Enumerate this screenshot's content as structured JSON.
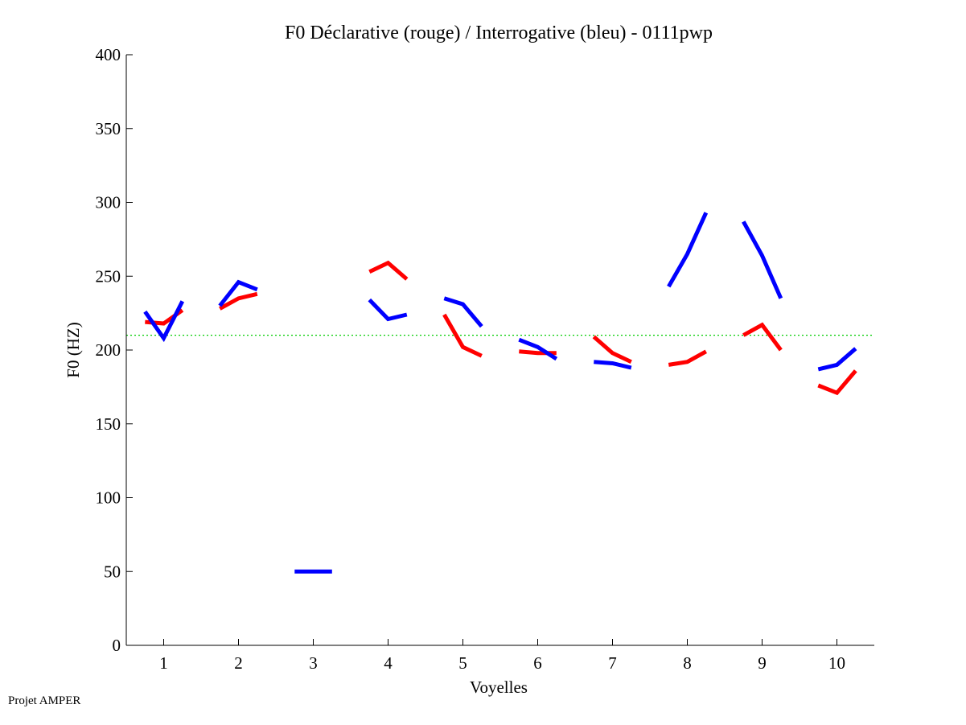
{
  "footer": "Projet AMPER",
  "chart_data": {
    "type": "line",
    "title": "F0 Déclarative (rouge) / Interrogative (bleu) - 0111pwp",
    "xlabel": "Voyelles",
    "ylabel": "F0 (HZ)",
    "xlim": [
      0.5,
      10.5
    ],
    "ylim": [
      0,
      400
    ],
    "xticks": [
      1,
      2,
      3,
      4,
      5,
      6,
      7,
      8,
      9,
      10
    ],
    "yticks": [
      0,
      50,
      100,
      150,
      200,
      250,
      300,
      350,
      400
    ],
    "grid": false,
    "reference_line": {
      "y": 210,
      "color": "#00cc00",
      "style": "dotted"
    },
    "series": [
      {
        "color": "#ff0000",
        "segments": [
          {
            "x": [
              0.75,
              1.0,
              1.25
            ],
            "y": [
              219,
              218,
              227
            ]
          },
          {
            "x": [
              1.75,
              2.0,
              2.25
            ],
            "y": [
              228,
              235,
              238
            ]
          },
          {
            "x": [
              3.75,
              4.0,
              4.25
            ],
            "y": [
              253,
              259,
              248
            ]
          },
          {
            "x": [
              4.75,
              5.0,
              5.25
            ],
            "y": [
              224,
              202,
              196
            ]
          },
          {
            "x": [
              5.75,
              6.0,
              6.25
            ],
            "y": [
              199,
              198,
              198
            ]
          },
          {
            "x": [
              6.75,
              7.0,
              7.25
            ],
            "y": [
              209,
              198,
              192
            ]
          },
          {
            "x": [
              7.75,
              8.0,
              8.25
            ],
            "y": [
              190,
              192,
              199
            ]
          },
          {
            "x": [
              8.75,
              9.0,
              9.25
            ],
            "y": [
              210,
              217,
              200
            ]
          },
          {
            "x": [
              9.75,
              10.0,
              10.25
            ],
            "y": [
              176,
              171,
              186
            ]
          }
        ]
      },
      {
        "color": "#0000ff",
        "segments": [
          {
            "x": [
              0.75,
              1.0,
              1.25
            ],
            "y": [
              226,
              208,
              233
            ]
          },
          {
            "x": [
              1.75,
              2.0,
              2.25
            ],
            "y": [
              230,
              246,
              241
            ]
          },
          {
            "x": [
              2.75,
              3.0,
              3.25
            ],
            "y": [
              50,
              50,
              50
            ]
          },
          {
            "x": [
              3.75,
              4.0,
              4.25
            ],
            "y": [
              234,
              221,
              224
            ]
          },
          {
            "x": [
              4.75,
              5.0,
              5.25
            ],
            "y": [
              235,
              231,
              216
            ]
          },
          {
            "x": [
              5.75,
              6.0,
              6.25
            ],
            "y": [
              207,
              202,
              194
            ]
          },
          {
            "x": [
              6.75,
              7.0,
              7.25
            ],
            "y": [
              192,
              191,
              188
            ]
          },
          {
            "x": [
              7.75,
              8.0,
              8.25
            ],
            "y": [
              243,
              265,
              293
            ]
          },
          {
            "x": [
              8.75,
              9.0,
              9.25
            ],
            "y": [
              287,
              264,
              235
            ]
          },
          {
            "x": [
              9.75,
              10.0,
              10.25
            ],
            "y": [
              187,
              190,
              201
            ]
          }
        ]
      }
    ]
  }
}
